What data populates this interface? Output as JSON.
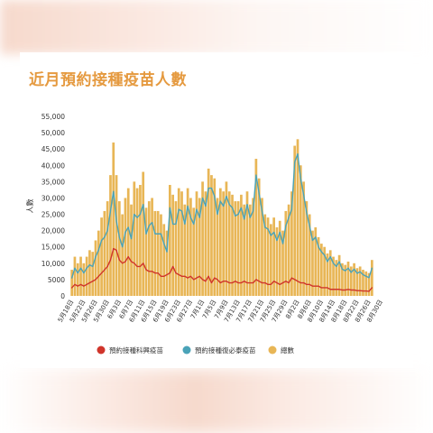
{
  "title": "近月預約接種疫苗人數",
  "chart_data": {
    "type": "bar",
    "ylabel": "人數",
    "ylim": [
      0,
      55000
    ],
    "yticks": [
      0,
      5000,
      10000,
      15000,
      20000,
      25000,
      30000,
      35000,
      40000,
      45000,
      50000,
      55000
    ],
    "ytick_labels": [
      "0",
      "5000",
      "10,000",
      "15,000",
      "20,000",
      "25,000",
      "30,000",
      "35,000",
      "40,000",
      "45,000",
      "50,000",
      "55,000"
    ],
    "xtick_labels": [
      "5月18日",
      "5月22日",
      "5月26日",
      "5月30日",
      "6月3日",
      "6月7日",
      "6月11日",
      "6月15日",
      "6月19日",
      "6月23日",
      "6月27日",
      "7月1日",
      "7月5日",
      "7月9日",
      "7月13日",
      "7月17日",
      "7月21日",
      "7月25日",
      "7月29日",
      "8月2日",
      "8月6日",
      "8月10日",
      "8月14日",
      "8月18日",
      "8月22日",
      "8月26日",
      "8月30日"
    ],
    "legend_position": "bottom",
    "colors": {
      "bars": "#e8b656",
      "line_a": "#d0352b",
      "line_b": "#4aa3b8"
    },
    "series": [
      {
        "name": "總數",
        "kind": "bar",
        "values": [
          8000,
          12000,
          10000,
          12000,
          10000,
          12000,
          14000,
          13500,
          17000,
          20000,
          24000,
          26000,
          29000,
          37000,
          47000,
          37000,
          29000,
          25000,
          30000,
          33000,
          28000,
          35000,
          33000,
          34000,
          38000,
          27000,
          29000,
          30000,
          26000,
          26000,
          25000,
          22000,
          20000,
          34000,
          31000,
          29000,
          33000,
          32000,
          28000,
          33000,
          30000,
          27000,
          32000,
          30000,
          35000,
          32000,
          39000,
          37000,
          36000,
          30000,
          33000,
          32000,
          35000,
          32000,
          31000,
          29000,
          29000,
          31000,
          28000,
          32000,
          28000,
          30000,
          42000,
          36000,
          30000,
          25000,
          24000,
          22000,
          24000,
          21000,
          23000,
          20000,
          26000,
          28000,
          32000,
          46000,
          48000,
          40000,
          35000,
          29000,
          25000,
          20000,
          21000,
          18000,
          16000,
          15000,
          13000,
          14000,
          12000,
          11000,
          12500,
          10000,
          9500,
          10500,
          9000,
          10000,
          8500,
          9000,
          8000,
          7500,
          7000,
          11000
        ]
      },
      {
        "name": "預約接種科興疫苗",
        "kind": "line",
        "values": [
          2500,
          3500,
          3000,
          3500,
          3000,
          3500,
          4000,
          4500,
          5000,
          6000,
          7000,
          8000,
          9000,
          11000,
          14500,
          14000,
          11000,
          10000,
          10500,
          12000,
          10500,
          10000,
          9000,
          9000,
          10000,
          8000,
          7500,
          7500,
          7000,
          7000,
          6000,
          6000,
          6500,
          7000,
          9000,
          7000,
          6500,
          6000,
          6000,
          5500,
          6000,
          5000,
          5500,
          6000,
          5000,
          4500,
          6000,
          4000,
          5500,
          5000,
          4000,
          4500,
          4500,
          4000,
          4000,
          4500,
          4000,
          4000,
          4500,
          4000,
          4000,
          4000,
          5000,
          4500,
          4000,
          4000,
          3500,
          3500,
          4500,
          4000,
          3500,
          4000,
          4500,
          4000,
          5500,
          5000,
          4500,
          4000,
          4000,
          3500,
          3500,
          3000,
          3000,
          3000,
          2500,
          2500,
          2500,
          2000,
          2000,
          2000,
          2000,
          1800,
          1800,
          2000,
          1800,
          1800,
          1600,
          1600,
          1500,
          1500,
          1400,
          2500
        ]
      },
      {
        "name": "預約接種復必泰疫苗",
        "kind": "line",
        "values": [
          5500,
          8500,
          7000,
          8500,
          7000,
          8500,
          9500,
          9000,
          12000,
          14000,
          17000,
          18000,
          20000,
          26000,
          32000,
          23000,
          18000,
          15000,
          19500,
          21000,
          17500,
          25000,
          24000,
          25000,
          28000,
          19000,
          21500,
          22500,
          19000,
          19000,
          19000,
          16000,
          13500,
          27000,
          22000,
          22000,
          26500,
          26000,
          22000,
          27500,
          24000,
          22000,
          26500,
          24000,
          30000,
          27500,
          33000,
          33000,
          30500,
          25000,
          29000,
          27500,
          30500,
          28000,
          27000,
          24500,
          25000,
          27000,
          23500,
          28000,
          24000,
          26000,
          37000,
          31500,
          26000,
          21000,
          20500,
          18500,
          19500,
          17000,
          19500,
          16000,
          21500,
          24000,
          26500,
          41000,
          43500,
          36000,
          31000,
          25500,
          21500,
          17000,
          18000,
          15000,
          13500,
          12500,
          10500,
          12000,
          10000,
          9000,
          10500,
          8200,
          7700,
          8500,
          7200,
          8200,
          6900,
          7400,
          6500,
          6000,
          5600,
          8500
        ]
      }
    ]
  }
}
